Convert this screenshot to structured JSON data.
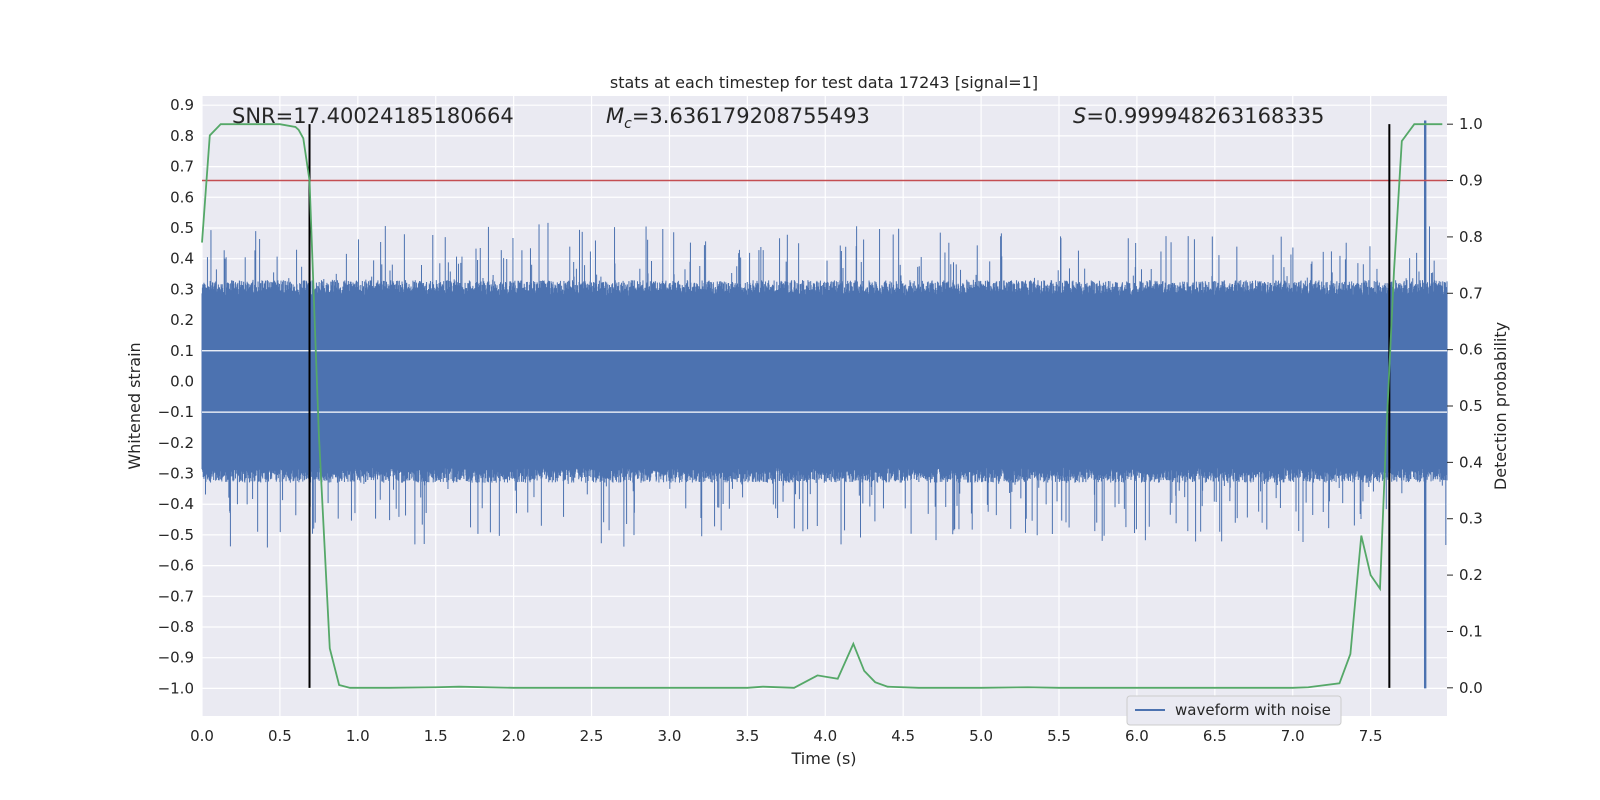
{
  "chart_data": {
    "type": "line",
    "title": "stats at each timestep for test data 17243 [signal=1]",
    "xlabel": "Time (s)",
    "ylabel": "Whitened strain",
    "y2label": "Detection probability",
    "xlim": [
      0.0,
      7.99
    ],
    "ylim": [
      -1.09,
      0.93
    ],
    "y2lim": [
      -0.05,
      1.05
    ],
    "x_ticks": [
      0.0,
      0.5,
      1.0,
      1.5,
      2.0,
      2.5,
      3.0,
      3.5,
      4.0,
      4.5,
      5.0,
      5.5,
      6.0,
      6.5,
      7.0,
      7.5
    ],
    "x_tick_labels": [
      "0.0",
      "0.5",
      "1.0",
      "1.5",
      "2.0",
      "2.5",
      "3.0",
      "3.5",
      "4.0",
      "4.5",
      "5.0",
      "5.5",
      "6.0",
      "6.5",
      "7.0",
      "7.5"
    ],
    "y_ticks": [
      0.9,
      0.8,
      0.7,
      0.6,
      0.5,
      0.4,
      0.3,
      0.2,
      0.1,
      0.0,
      -0.1,
      -0.2,
      -0.3,
      -0.4,
      -0.5,
      -0.6,
      -0.7,
      -0.8,
      -0.9,
      -1.0
    ],
    "y_tick_labels": [
      "0.9",
      "0.8",
      "0.7",
      "0.6",
      "0.5",
      "0.4",
      "0.3",
      "0.2",
      "0.1",
      "0.0",
      "−0.1",
      "−0.2",
      "−0.3",
      "−0.4",
      "−0.5",
      "−0.6",
      "−0.7",
      "−0.8",
      "−0.9",
      "−1.0"
    ],
    "y2_ticks": [
      1.0,
      0.9,
      0.8,
      0.7,
      0.6,
      0.5,
      0.4,
      0.3,
      0.2,
      0.1,
      0.0
    ],
    "y2_tick_labels": [
      "1.0",
      "0.9",
      "0.8",
      "0.7",
      "0.6",
      "0.5",
      "0.4",
      "0.3",
      "0.2",
      "0.1",
      "0.0"
    ],
    "grid": true,
    "background": "#eaeaf2",
    "annotations": {
      "snr": "SNR=17.40024185180664",
      "mc_prefix": "M",
      "mc_sub": "c",
      "mc_value": "=3.636179208755493",
      "s_prefix": "S",
      "s_value": "=0.999948263168335"
    },
    "threshold_line": {
      "y2": 0.9,
      "color": "#c44e52"
    },
    "vertical_lines": [
      0.69,
      7.62
    ],
    "waveform": {
      "name": "waveform with noise",
      "color": "#4c72b0",
      "x_range": [
        0.0,
        7.99
      ],
      "noise_band": 0.28,
      "peak_spike": {
        "x": 7.85,
        "max": 0.85,
        "min": -1.0
      }
    },
    "probability": {
      "color": "#55a868",
      "x": [
        0.0,
        0.05,
        0.12,
        0.2,
        0.3,
        0.4,
        0.5,
        0.6,
        0.62,
        0.65,
        0.69,
        0.75,
        0.82,
        0.88,
        0.95,
        1.0,
        1.2,
        1.5,
        1.65,
        2.0,
        2.25,
        2.5,
        3.0,
        3.5,
        3.6,
        3.8,
        3.95,
        4.08,
        4.18,
        4.25,
        4.32,
        4.4,
        4.6,
        5.0,
        5.3,
        5.5,
        5.8,
        6.2,
        6.5,
        7.0,
        7.1,
        7.3,
        7.37,
        7.44,
        7.5,
        7.56,
        7.6,
        7.65,
        7.7,
        7.78,
        7.85,
        7.92,
        7.96
      ],
      "y": [
        0.79,
        0.98,
        1.0,
        1.0,
        1.0,
        1.0,
        1.0,
        0.995,
        0.99,
        0.975,
        0.9,
        0.45,
        0.07,
        0.005,
        0.0,
        0.0,
        0.0,
        0.001,
        0.002,
        0.0,
        0.0,
        0.0,
        0.0,
        0.0,
        0.002,
        0.0,
        0.022,
        0.016,
        0.078,
        0.03,
        0.01,
        0.002,
        0.0,
        0.0,
        0.001,
        0.0,
        0.0,
        0.0,
        0.0,
        0.0,
        0.001,
        0.008,
        0.06,
        0.27,
        0.2,
        0.176,
        0.45,
        0.74,
        0.97,
        1.0,
        1.0,
        1.0,
        1.0
      ]
    }
  }
}
